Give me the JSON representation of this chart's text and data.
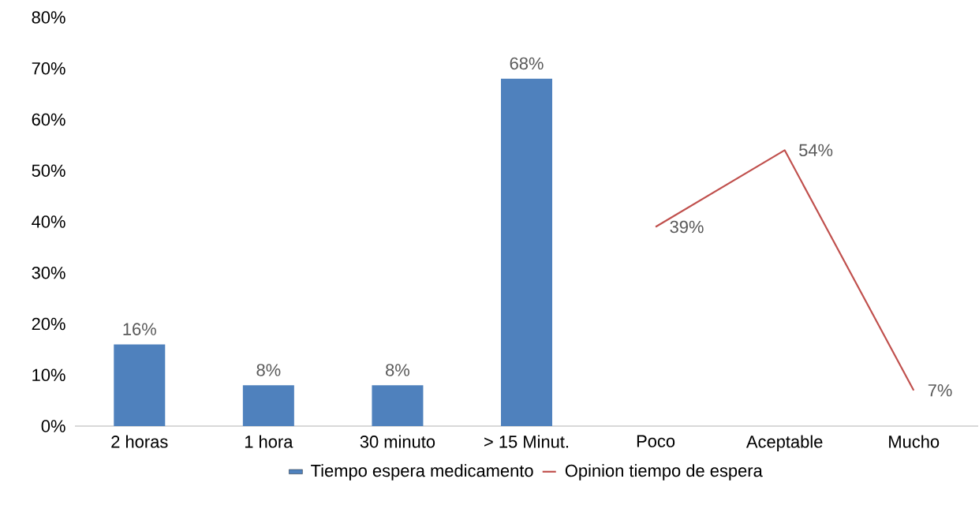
{
  "chart_data": {
    "type": "bar",
    "categories": [
      "2 horas",
      "1 hora",
      "30 minuto",
      "> 15 Minut.",
      "Poco",
      "Aceptable",
      "Mucho"
    ],
    "series": [
      {
        "name": "Tiempo espera medicamento",
        "type": "bar",
        "color": "#4f81bd",
        "values": [
          16,
          8,
          8,
          68,
          null,
          null,
          null
        ],
        "value_labels": [
          "16%",
          "8%",
          "8%",
          "68%",
          null,
          null,
          null
        ]
      },
      {
        "name": "Opinion tiempo de espera",
        "type": "line",
        "color": "#c0504d",
        "values": [
          null,
          null,
          null,
          null,
          39,
          54,
          7
        ],
        "value_labels": [
          null,
          null,
          null,
          null,
          "39%",
          "54%",
          "7%"
        ]
      }
    ],
    "ylim": [
      0,
      80
    ],
    "yticks": [
      {
        "value": 0,
        "label": "0%"
      },
      {
        "value": 10,
        "label": "10%"
      },
      {
        "value": 20,
        "label": "20%"
      },
      {
        "value": 30,
        "label": "30%"
      },
      {
        "value": 40,
        "label": "40%"
      },
      {
        "value": 50,
        "label": "50%"
      },
      {
        "value": 60,
        "label": "60%"
      },
      {
        "value": 70,
        "label": "70%"
      },
      {
        "value": 80,
        "label": "80%"
      }
    ],
    "legend": "bottom"
  }
}
